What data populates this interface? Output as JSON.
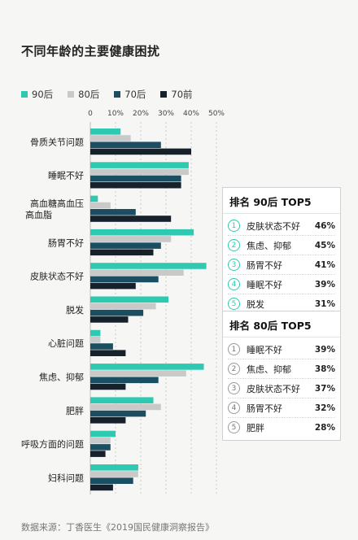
{
  "title": "不同年龄的主要健康困扰",
  "source": "数据来源：丁香医生《2019国民健康洞察报告》",
  "colors": {
    "90后": "#2ec9b0",
    "80后": "#c9c9c9",
    "70后": "#1c4e62",
    "70前": "#16212c"
  },
  "chart_data": {
    "type": "bar",
    "orientation": "horizontal",
    "title": "不同年龄的主要健康困扰",
    "categories": [
      "骨质关节问题",
      "睡眠不好",
      "高血糖高血压高血脂",
      "肠胃不好",
      "皮肤状态不好",
      "脱发",
      "心脏问题",
      "焦虑、抑郁",
      "肥胖",
      "呼吸方面的问题",
      "妇科问题"
    ],
    "category_display": [
      "骨质关节问题",
      "睡眠不好",
      "高血糖高血压\n高血脂",
      "肠胃不好",
      "皮肤状态不好",
      "脱发",
      "心脏问题",
      "焦虑、抑郁",
      "肥胖",
      "呼吸方面的问题",
      "妇科问题"
    ],
    "series": [
      {
        "name": "90后",
        "values": [
          12,
          39,
          3,
          41,
          46,
          31,
          4,
          45,
          25,
          10,
          19
        ]
      },
      {
        "name": "80后",
        "values": [
          16,
          39,
          8,
          32,
          37,
          26,
          4,
          38,
          28,
          8,
          19
        ]
      },
      {
        "name": "70后",
        "values": [
          28,
          36,
          18,
          28,
          27,
          21,
          9,
          27,
          22,
          8,
          17
        ]
      },
      {
        "name": "70前",
        "values": [
          40,
          36,
          32,
          25,
          18,
          15,
          14,
          14,
          14,
          6,
          9
        ]
      }
    ],
    "xticks": [
      "0",
      "10%",
      "20%",
      "30%",
      "40%",
      "50%"
    ],
    "xlim": [
      0,
      50
    ],
    "legend_position": "top-left",
    "grid": true
  },
  "top5_90": {
    "title": "排名 90后 TOP5",
    "items": [
      {
        "rank": "1",
        "name": "皮肤状态不好",
        "pct": "46%"
      },
      {
        "rank": "2",
        "name": "焦虑、抑郁",
        "pct": "45%"
      },
      {
        "rank": "3",
        "name": "肠胃不好",
        "pct": "41%"
      },
      {
        "rank": "4",
        "name": "睡眠不好",
        "pct": "39%"
      },
      {
        "rank": "5",
        "name": "脱发",
        "pct": "31%"
      }
    ]
  },
  "top5_80": {
    "title": "排名 80后 TOP5",
    "items": [
      {
        "rank": "1",
        "name": "睡眠不好",
        "pct": "39%"
      },
      {
        "rank": "2",
        "name": "焦虑、抑郁",
        "pct": "38%"
      },
      {
        "rank": "3",
        "name": "皮肤状态不好",
        "pct": "37%"
      },
      {
        "rank": "4",
        "name": "肠胃不好",
        "pct": "32%"
      },
      {
        "rank": "5",
        "name": "肥胖",
        "pct": "28%"
      }
    ]
  }
}
